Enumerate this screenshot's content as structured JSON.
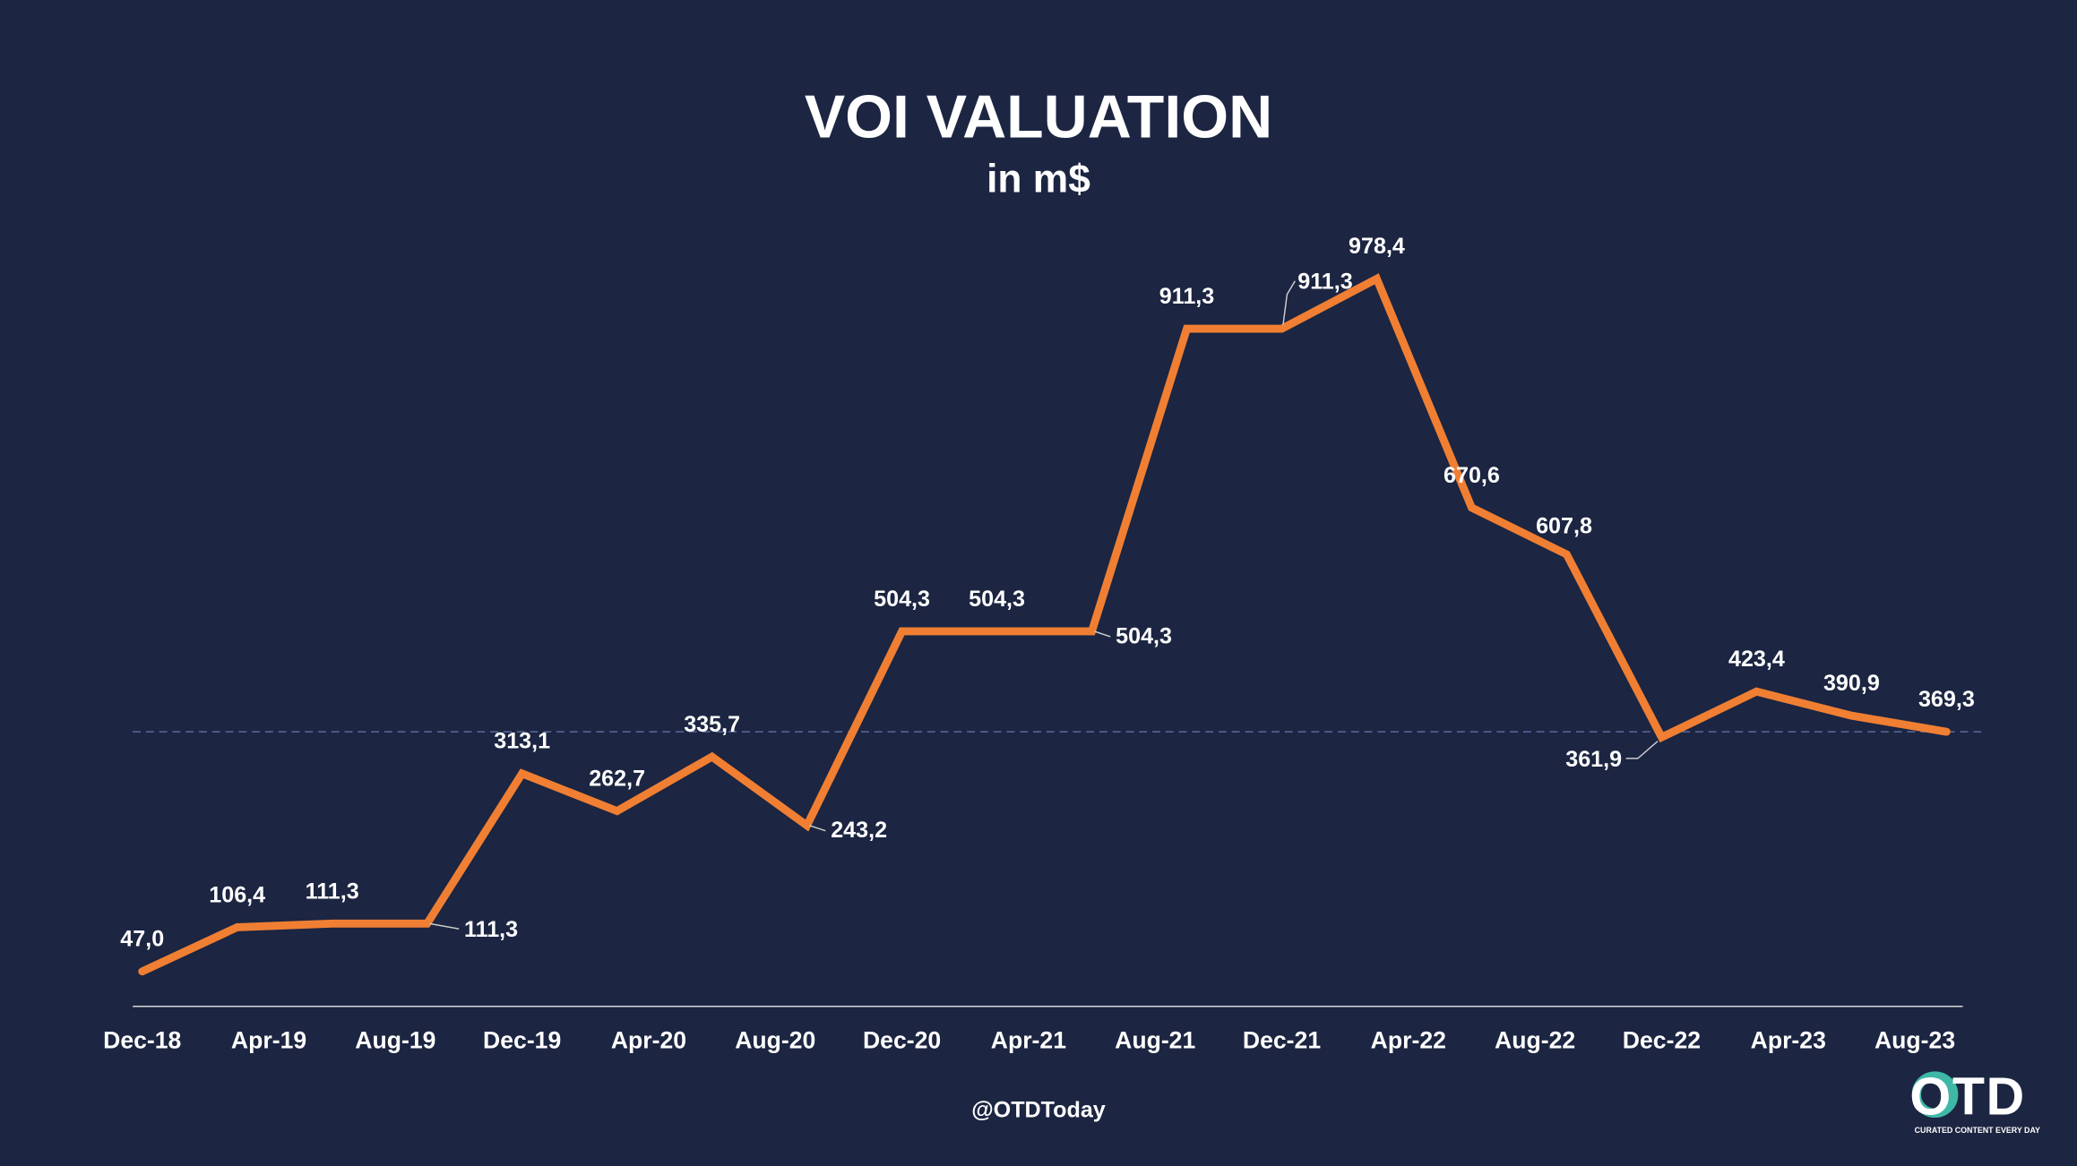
{
  "chart_data": {
    "type": "line",
    "title": "VOI VALUATION",
    "subtitle": "in m$",
    "x": [
      0,
      3,
      6,
      9,
      12,
      15,
      18,
      21,
      24,
      27,
      30,
      33,
      36,
      39,
      42,
      45,
      48,
      51,
      54,
      57
    ],
    "series": [
      {
        "name": "VOI valuation",
        "color": "#f07f33",
        "values": [
          47.0,
          106.4,
          111.3,
          111.3,
          313.1,
          262.7,
          335.7,
          243.2,
          504.3,
          504.3,
          504.3,
          911.3,
          911.3,
          978.4,
          670.6,
          607.8,
          361.9,
          423.4,
          390.9,
          369.3
        ],
        "value_labels": [
          "47,0",
          "106,4",
          "111,3",
          "111,3",
          "313,1",
          "262,7",
          "335,7",
          "243,2",
          "504,3",
          "504,3",
          "504,3",
          "911,3",
          "911,3",
          "978,4",
          "670,6",
          "607,8",
          "361,9",
          "423,4",
          "390,9",
          "369,3"
        ]
      }
    ],
    "xlim": [
      -0.3,
      58.1
    ],
    "xticks": [
      {
        "value": 0,
        "label": "Dec-18"
      },
      {
        "value": 4,
        "label": "Apr-19"
      },
      {
        "value": 8,
        "label": "Aug-19"
      },
      {
        "value": 12,
        "label": "Dec-19"
      },
      {
        "value": 16,
        "label": "Apr-20"
      },
      {
        "value": 20,
        "label": "Aug-20"
      },
      {
        "value": 24,
        "label": "Dec-20"
      },
      {
        "value": 28,
        "label": "Apr-21"
      },
      {
        "value": 32,
        "label": "Aug-21"
      },
      {
        "value": 36,
        "label": "Dec-21"
      },
      {
        "value": 40,
        "label": "Apr-22"
      },
      {
        "value": 44,
        "label": "Aug-22"
      },
      {
        "value": 48,
        "label": "Dec-22"
      },
      {
        "value": 52,
        "label": "Apr-23"
      },
      {
        "value": 56,
        "label": "Aug-23"
      }
    ],
    "ylim": [
      0,
      1000
    ],
    "source": "@OTDToday",
    "logo": {
      "name": "OTD",
      "tagline": "CURATED CONTENT EVERY DAY"
    }
  }
}
